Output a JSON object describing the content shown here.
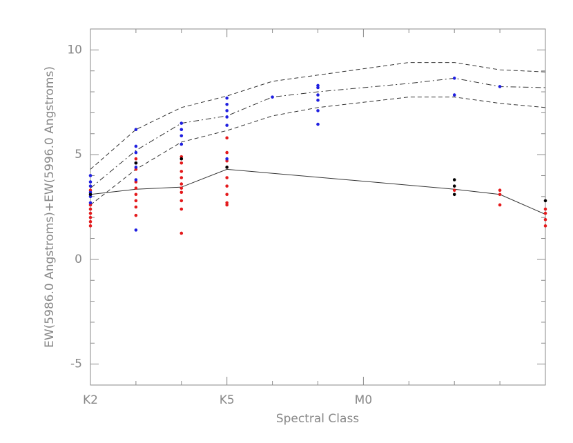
{
  "chart_data": {
    "type": "scatter",
    "xlabel": "Spectral Class",
    "ylabel": "EW(5986.0 Angstroms)+EW(5996.0 Angstroms)",
    "xlim": [
      0,
      10
    ],
    "ylim": [
      -6,
      11
    ],
    "xticks": [
      {
        "value": 0,
        "label": "K2"
      },
      {
        "value": 3,
        "label": "K5"
      },
      {
        "value": 6,
        "label": "M0"
      }
    ],
    "xminorticks": [
      1,
      2,
      4,
      5,
      7,
      8,
      9
    ],
    "yticks": [
      -5,
      0,
      5,
      10
    ],
    "yminorticks": [
      -4,
      -3,
      -2,
      -1,
      1,
      2,
      3,
      4,
      6,
      7,
      8,
      9
    ],
    "lines": [
      {
        "color": "#333333",
        "dash": "none",
        "x": [
          0,
          1,
          2,
          3,
          8,
          9,
          10
        ],
        "y": [
          3.1,
          3.35,
          3.45,
          4.3,
          3.35,
          3.1,
          2.15
        ]
      },
      {
        "color": "#333333",
        "dash": "8 4 2 4",
        "x": [
          0,
          1,
          2,
          3,
          4,
          5,
          6,
          7,
          8,
          9,
          10
        ],
        "y": [
          3.4,
          5.2,
          6.5,
          6.85,
          7.75,
          8.0,
          8.2,
          8.4,
          8.65,
          8.25,
          8.2
        ]
      },
      {
        "color": "#333333",
        "dash": "6 4",
        "x": [
          0,
          1,
          2,
          3,
          4,
          5,
          6,
          7,
          8,
          9,
          10
        ],
        "y": [
          4.3,
          6.2,
          7.25,
          7.8,
          8.5,
          8.8,
          9.1,
          9.4,
          9.4,
          9.05,
          8.95
        ]
      },
      {
        "color": "#333333",
        "dash": "6 4",
        "x": [
          0,
          1,
          2,
          3,
          4,
          5,
          6,
          7,
          8,
          9,
          10
        ],
        "y": [
          2.6,
          4.3,
          5.6,
          6.15,
          6.85,
          7.25,
          7.5,
          7.75,
          7.75,
          7.45,
          7.25
        ]
      }
    ],
    "series": [
      {
        "color": "#e41a1c",
        "x": [
          0,
          0,
          0,
          0,
          0,
          0,
          0,
          1,
          1,
          1,
          1,
          1,
          1,
          1,
          1,
          1,
          2,
          2,
          2,
          2,
          2,
          2,
          2,
          2,
          2,
          2,
          3,
          3,
          3,
          3,
          3,
          3,
          3,
          3,
          3,
          8,
          9,
          9,
          9,
          10,
          10,
          10,
          10
        ],
        "y": [
          3.3,
          2.6,
          2.4,
          2.2,
          2.0,
          1.8,
          1.6,
          4.8,
          4.6,
          4.3,
          3.7,
          3.4,
          3.1,
          2.8,
          2.5,
          2.1,
          4.9,
          4.6,
          4.2,
          3.9,
          3.6,
          3.4,
          3.2,
          2.8,
          2.4,
          1.25,
          5.8,
          5.1,
          4.7,
          4.4,
          3.9,
          3.5,
          3.1,
          2.7,
          2.6,
          3.3,
          3.3,
          3.1,
          2.6,
          2.4,
          2.2,
          1.9,
          1.6
        ]
      },
      {
        "color": "#1f1fe0",
        "x": [
          0,
          0,
          0,
          0,
          0,
          0,
          1,
          1,
          1,
          1,
          1,
          1,
          1,
          2,
          2,
          2,
          2,
          3,
          3,
          3,
          3,
          3,
          3,
          4,
          5,
          5,
          5,
          5,
          5,
          5,
          8,
          8,
          9
        ],
        "y": [
          4.0,
          3.7,
          3.5,
          3.2,
          3.0,
          2.7,
          6.2,
          5.4,
          5.1,
          4.6,
          4.4,
          3.8,
          1.4,
          6.5,
          6.2,
          5.9,
          5.5,
          7.7,
          7.4,
          7.1,
          6.8,
          6.4,
          4.8,
          7.75,
          8.3,
          8.2,
          7.85,
          7.6,
          7.1,
          6.45,
          8.65,
          7.85,
          8.25
        ]
      },
      {
        "color": "#000000",
        "x": [
          0,
          1,
          2,
          3,
          8,
          8,
          8,
          10
        ],
        "y": [
          3.1,
          4.6,
          4.8,
          4.4,
          3.8,
          3.5,
          3.1,
          2.8
        ]
      }
    ]
  }
}
